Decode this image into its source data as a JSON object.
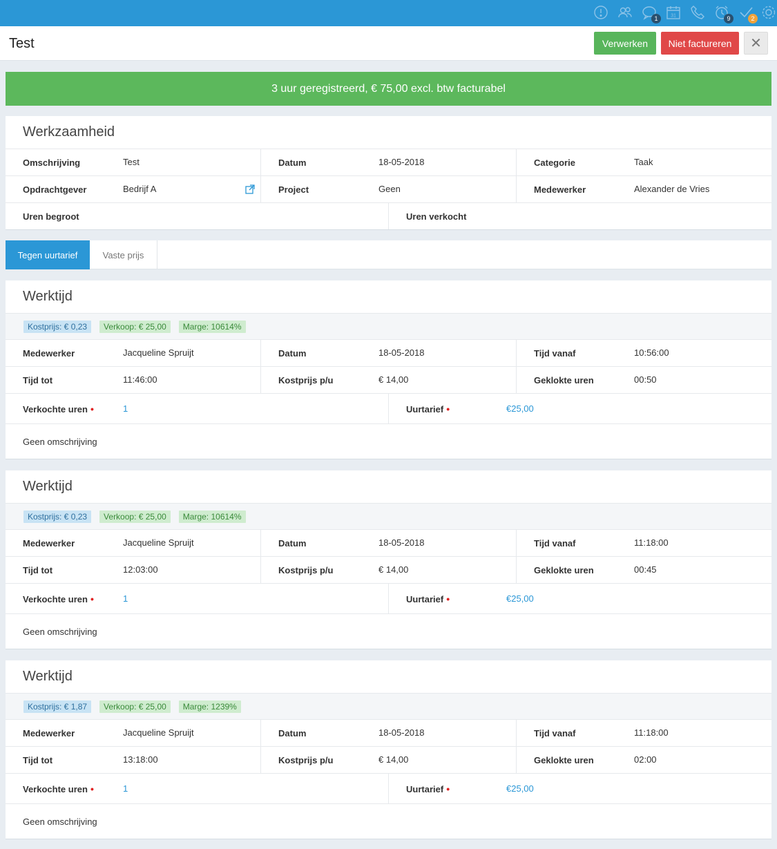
{
  "topbar": {
    "icons": [
      {
        "name": "alert-icon",
        "badge": ""
      },
      {
        "name": "users-icon",
        "badge": ""
      },
      {
        "name": "chat-icon",
        "badge": "1"
      },
      {
        "name": "calendar-icon",
        "badge": "",
        "label": "31"
      },
      {
        "name": "phone-icon",
        "badge": ""
      },
      {
        "name": "alarm-icon",
        "badge": "9"
      },
      {
        "name": "check-icon",
        "badge": "2"
      },
      {
        "name": "settings-icon",
        "badge": ""
      }
    ]
  },
  "header": {
    "title": "Test",
    "process_label": "Verwerken",
    "no_invoice_label": "Niet factureren",
    "close_symbol": "✕"
  },
  "banner": {
    "text": "3 uur geregistreerd, € 75,00 excl. btw facturabel"
  },
  "werkzaamheid": {
    "title": "Werkzaamheid",
    "omschrijving_label": "Omschrijving",
    "omschrijving": "Test",
    "datum_label": "Datum",
    "datum": "18-05-2018",
    "categorie_label": "Categorie",
    "categorie": "Taak",
    "opdrachtgever_label": "Opdrachtgever",
    "opdrachtgever": "Bedrijf A",
    "project_label": "Project",
    "project": "Geen",
    "medewerker_label": "Medewerker",
    "medewerker": "Alexander de Vries",
    "uren_begroot_label": "Uren begroot",
    "uren_verkocht_label": "Uren verkocht"
  },
  "tabs": {
    "hourly": "Tegen uurtarief",
    "fixed": "Vaste prijs"
  },
  "labels": {
    "werktijd": "Werktijd",
    "medewerker": "Medewerker",
    "datum": "Datum",
    "tijd_vanaf": "Tijd vanaf",
    "tijd_tot": "Tijd tot",
    "kostprijs_pu": "Kostprijs p/u",
    "geklokte_uren": "Geklokte uren",
    "verkochte_uren": "Verkochte uren",
    "uurtarief": "Uurtarief",
    "required_dot": "•"
  },
  "entries": [
    {
      "kostprijs": "Kostprijs: € 0,23",
      "verkoop": "Verkoop: € 25,00",
      "marge": "Marge: 10614%",
      "medewerker": "Jacqueline Spruijt",
      "datum": "18-05-2018",
      "tijd_vanaf": "10:56:00",
      "tijd_tot": "11:46:00",
      "kostprijs_pu": "€ 14,00",
      "geklokte_uren": "00:50",
      "verkochte_uren": "1",
      "uurtarief": "€25,00",
      "omschrijving": "Geen omschrijving"
    },
    {
      "kostprijs": "Kostprijs: € 0,23",
      "verkoop": "Verkoop: € 25,00",
      "marge": "Marge: 10614%",
      "medewerker": "Jacqueline Spruijt",
      "datum": "18-05-2018",
      "tijd_vanaf": "11:18:00",
      "tijd_tot": "12:03:00",
      "kostprijs_pu": "€ 14,00",
      "geklokte_uren": "00:45",
      "verkochte_uren": "1",
      "uurtarief": "€25,00",
      "omschrijving": "Geen omschrijving"
    },
    {
      "kostprijs": "Kostprijs: € 1,87",
      "verkoop": "Verkoop: € 25,00",
      "marge": "Marge: 1239%",
      "medewerker": "Jacqueline Spruijt",
      "datum": "18-05-2018",
      "tijd_vanaf": "11:18:00",
      "tijd_tot": "13:18:00",
      "kostprijs_pu": "€ 14,00",
      "geklokte_uren": "02:00",
      "verkochte_uren": "1",
      "uurtarief": "€25,00",
      "omschrijving": "Geen omschrijving"
    }
  ]
}
